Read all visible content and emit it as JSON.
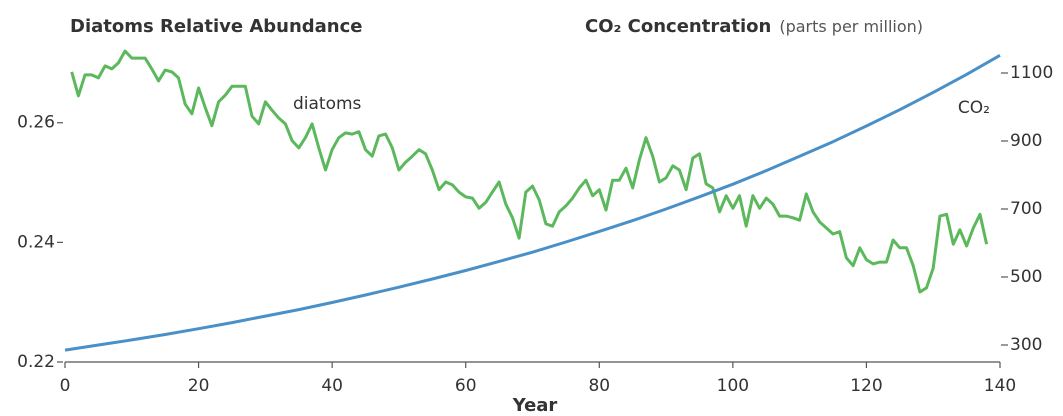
{
  "chart_data": {
    "type": "line",
    "title": "Diatoms Relative Abundance",
    "y2_title": "CO₂ Concentration",
    "y2_subtitle": "(parts per million)",
    "xlabel": "Year",
    "xlim": [
      0,
      140
    ],
    "xticks": [
      0,
      20,
      40,
      60,
      80,
      100,
      120,
      140
    ],
    "ylim": [
      0.22,
      0.274
    ],
    "yticks": [
      0.22,
      0.24,
      0.26
    ],
    "y2lim": [
      250,
      1200
    ],
    "y2ticks": [
      300,
      500,
      700,
      900,
      1100
    ],
    "series": [
      {
        "name": "diatoms",
        "color": "#5cb85c",
        "x": [
          1,
          2,
          3,
          4,
          5,
          6,
          7,
          8,
          9,
          10,
          11,
          12,
          13,
          14,
          15,
          16,
          17,
          18,
          19,
          20,
          21,
          22,
          23,
          24,
          25,
          26,
          27,
          28,
          29,
          30,
          31,
          32,
          33,
          34,
          35,
          36,
          37,
          38,
          39,
          40,
          41,
          42,
          43,
          44,
          45,
          46,
          47,
          48,
          49,
          50,
          51,
          52,
          53,
          54,
          55,
          56,
          57,
          58,
          59,
          60,
          61,
          62,
          63,
          64,
          65,
          66,
          67,
          68,
          69,
          70,
          71,
          72,
          73,
          74,
          75,
          76,
          77,
          78,
          79,
          80,
          81,
          82,
          83,
          84,
          85,
          86,
          87,
          88,
          89,
          90,
          91,
          92,
          93,
          94,
          95,
          96,
          97,
          98,
          99,
          100,
          101,
          102,
          103,
          104,
          105,
          106,
          107,
          108,
          109,
          110,
          111,
          112,
          113,
          114,
          115,
          116,
          117,
          118,
          119,
          120,
          121,
          122,
          123,
          124,
          125,
          126,
          127,
          128,
          129,
          130,
          131,
          132,
          133,
          134,
          135,
          136,
          137,
          138
        ],
        "values": [
          0.2685,
          0.2645,
          0.268,
          0.268,
          0.2675,
          0.2695,
          0.269,
          0.27,
          0.272,
          0.2708,
          0.2708,
          0.2708,
          0.269,
          0.267,
          0.2688,
          0.2685,
          0.2675,
          0.2631,
          0.2615,
          0.2658,
          0.2625,
          0.2595,
          0.2635,
          0.2646,
          0.2661,
          0.2661,
          0.2661,
          0.2611,
          0.2598,
          0.2635,
          0.2621,
          0.2608,
          0.2598,
          0.257,
          0.2558,
          0.2575,
          0.2598,
          0.2558,
          0.2521,
          0.2555,
          0.2575,
          0.2583,
          0.2581,
          0.2585,
          0.2555,
          0.2544,
          0.2578,
          0.2581,
          0.2558,
          0.2521,
          0.2534,
          0.2544,
          0.2555,
          0.2548,
          0.2521,
          0.2488,
          0.2501,
          0.2496,
          0.2484,
          0.2476,
          0.2474,
          0.2457,
          0.2467,
          0.2484,
          0.2501,
          0.2464,
          0.2441,
          0.2407,
          0.2484,
          0.2494,
          0.2471,
          0.2431,
          0.2427,
          0.2451,
          0.2461,
          0.2474,
          0.2491,
          0.2504,
          0.2478,
          0.2488,
          0.2454,
          0.2504,
          0.2504,
          0.2524,
          0.2491,
          0.2538,
          0.2575,
          0.2544,
          0.2501,
          0.2508,
          0.2528,
          0.2521,
          0.2488,
          0.2541,
          0.2548,
          0.2498,
          0.2491,
          0.2451,
          0.2478,
          0.2457,
          0.2478,
          0.2427,
          0.2478,
          0.2457,
          0.2474,
          0.2464,
          0.2444,
          0.2444,
          0.2441,
          0.2437,
          0.2481,
          0.2451,
          0.2434,
          0.2424,
          0.2414,
          0.2418,
          0.2374,
          0.2361,
          0.2391,
          0.2371,
          0.2364,
          0.2367,
          0.2367,
          0.2404,
          0.2391,
          0.2391,
          0.2361,
          0.2317,
          0.2324,
          0.2357,
          0.2444,
          0.2447,
          0.2397,
          0.2421,
          0.2394,
          0.2424,
          0.2447,
          0.2397
        ]
      },
      {
        "name": "CO₂",
        "color": "#4a90c8",
        "axis": "y2",
        "x": [
          0,
          5,
          10,
          15,
          20,
          25,
          30,
          35,
          40,
          45,
          50,
          55,
          60,
          65,
          70,
          75,
          80,
          85,
          90,
          95,
          100,
          105,
          110,
          115,
          120,
          125,
          130,
          135,
          140
        ],
        "values": [
          285,
          300,
          315,
          331,
          348,
          366,
          385,
          404,
          425,
          447,
          470,
          494,
          519,
          546,
          573,
          603,
          634,
          666,
          700,
          736,
          773,
          813,
          855,
          898,
          944,
          992,
          1043,
          1096,
          1152
        ]
      }
    ]
  }
}
